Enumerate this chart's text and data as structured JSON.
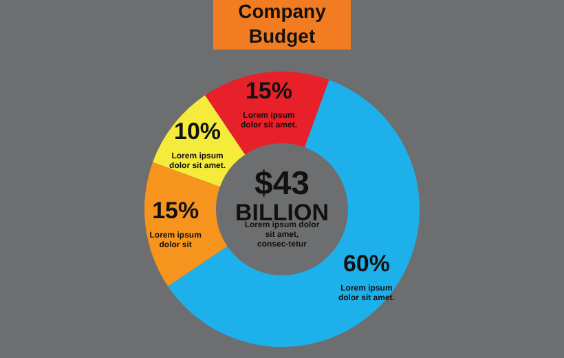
{
  "chart_data": {
    "type": "donut",
    "title": "Company Budget",
    "categories": [
      "Lorem ipsum dolor sit amet.",
      "Lorem ipsum dolor sit",
      "Lorem ipsum dolor sit amet.",
      "Lorem ipsum dolor sit amet."
    ],
    "values": [
      60,
      15,
      10,
      15
    ],
    "value_labels": [
      "60%",
      "15%",
      "10%",
      "15%"
    ],
    "colors": [
      "#1eb0ea",
      "#f7941d",
      "#f5eb3b",
      "#e8202a"
    ],
    "annotations": [
      "$43",
      "BILLION",
      "Lorem ipsum dolor sit amet, consec-tetur"
    ]
  }
}
